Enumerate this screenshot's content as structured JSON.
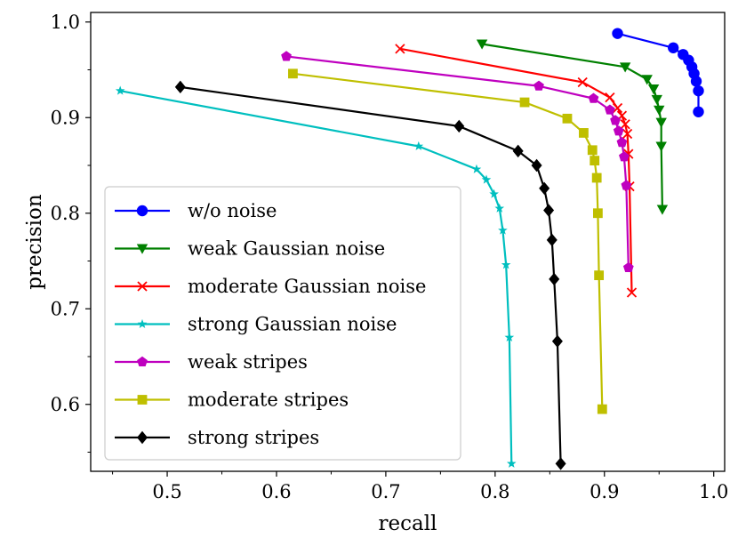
{
  "chart_data": {
    "type": "line",
    "title": "",
    "xlabel": "recall",
    "ylabel": "precision",
    "xlim": [
      0.43,
      1.01
    ],
    "ylim": [
      0.53,
      1.01
    ],
    "xticks": [
      0.5,
      0.6,
      0.7,
      0.8,
      0.9,
      1.0
    ],
    "xtick_labels": [
      "0.5",
      "0.6",
      "0.7",
      "0.8",
      "0.9",
      "1.0"
    ],
    "yticks": [
      0.6,
      0.7,
      0.8,
      0.9,
      1.0
    ],
    "ytick_labels": [
      "0.6",
      "0.7",
      "0.8",
      "0.9",
      "1.0"
    ],
    "legend_position": "center-left",
    "series": [
      {
        "name": "w/o noise",
        "color": "#0000ff",
        "marker": "circle",
        "x": [
          0.912,
          0.963,
          0.972,
          0.977,
          0.98,
          0.982,
          0.984,
          0.986,
          0.986
        ],
        "y": [
          0.988,
          0.973,
          0.966,
          0.96,
          0.953,
          0.946,
          0.938,
          0.928,
          0.906
        ]
      },
      {
        "name": "weak Gaussian noise",
        "color": "#008000",
        "marker": "triangle-down",
        "x": [
          0.788,
          0.919,
          0.939,
          0.945,
          0.948,
          0.95,
          0.952,
          0.952,
          0.953
        ],
        "y": [
          0.977,
          0.953,
          0.94,
          0.93,
          0.919,
          0.908,
          0.895,
          0.87,
          0.804
        ]
      },
      {
        "name": "moderate Gaussian noise",
        "color": "#ff0000",
        "marker": "x",
        "x": [
          0.713,
          0.88,
          0.905,
          0.912,
          0.916,
          0.919,
          0.921,
          0.922,
          0.923,
          0.925
        ],
        "y": [
          0.972,
          0.937,
          0.921,
          0.91,
          0.902,
          0.893,
          0.883,
          0.862,
          0.828,
          0.717
        ]
      },
      {
        "name": "strong Gaussian noise",
        "color": "#00bfbf",
        "marker": "star",
        "x": [
          0.457,
          0.73,
          0.783,
          0.792,
          0.799,
          0.804,
          0.807,
          0.81,
          0.813,
          0.815
        ],
        "y": [
          0.928,
          0.87,
          0.846,
          0.835,
          0.82,
          0.805,
          0.782,
          0.746,
          0.67,
          0.538
        ]
      },
      {
        "name": "weak stripes",
        "color": "#bf00bf",
        "marker": "pentagon",
        "x": [
          0.609,
          0.84,
          0.89,
          0.905,
          0.91,
          0.913,
          0.916,
          0.918,
          0.92,
          0.922
        ],
        "y": [
          0.964,
          0.933,
          0.92,
          0.908,
          0.897,
          0.886,
          0.874,
          0.859,
          0.829,
          0.743
        ]
      },
      {
        "name": "moderate stripes",
        "color": "#bfbf00",
        "marker": "square",
        "x": [
          0.615,
          0.827,
          0.866,
          0.881,
          0.889,
          0.891,
          0.893,
          0.894,
          0.895,
          0.898
        ],
        "y": [
          0.946,
          0.916,
          0.899,
          0.884,
          0.866,
          0.855,
          0.837,
          0.8,
          0.735,
          0.595
        ]
      },
      {
        "name": "strong stripes",
        "color": "#000000",
        "marker": "diamond",
        "x": [
          0.512,
          0.767,
          0.821,
          0.838,
          0.845,
          0.849,
          0.852,
          0.854,
          0.857,
          0.86
        ],
        "y": [
          0.932,
          0.891,
          0.865,
          0.85,
          0.826,
          0.803,
          0.772,
          0.731,
          0.666,
          0.538
        ]
      }
    ]
  }
}
